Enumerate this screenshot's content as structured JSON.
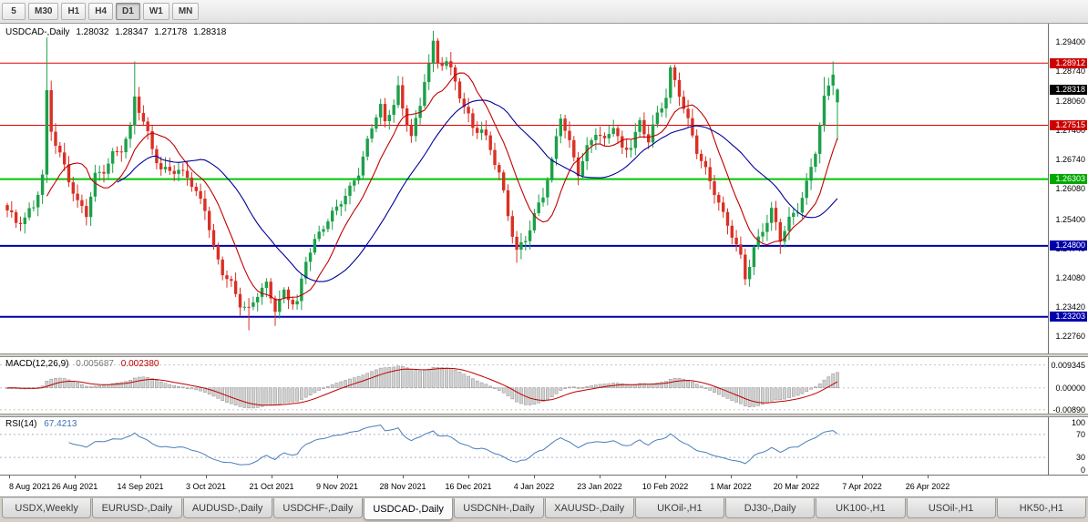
{
  "toolbar": {
    "timeframes": [
      "5",
      "M30",
      "H1",
      "H4",
      "D1",
      "W1",
      "MN"
    ],
    "active": "D1"
  },
  "chart": {
    "title": "USDCAD-,Daily",
    "ohlc": {
      "open": "1.28032",
      "high": "1.28347",
      "low": "1.27178",
      "close": "1.28318"
    }
  },
  "price_axis": {
    "labels": [
      "1.29400",
      "1.28740",
      "1.28060",
      "1.27400",
      "1.26740",
      "1.26080",
      "1.25400",
      "1.24740",
      "1.24080",
      "1.23420",
      "1.22760"
    ],
    "boxes": [
      {
        "value": "1.28912",
        "bg": "#CC0000"
      },
      {
        "value": "1.28318",
        "bg": "#000000"
      },
      {
        "value": "1.27515",
        "bg": "#CC0000"
      },
      {
        "value": "1.26303",
        "bg": "#00A800"
      },
      {
        "value": "1.24800",
        "bg": "#0000AA"
      },
      {
        "value": "1.23203",
        "bg": "#0000AA"
      }
    ]
  },
  "levels": [
    {
      "price": 1.28912,
      "color": "#DD0000",
      "width": 1
    },
    {
      "price": 1.27515,
      "color": "#DD0000",
      "width": 1
    },
    {
      "price": 1.26303,
      "color": "#00C400",
      "width": 2
    },
    {
      "price": 1.248,
      "color": "#0000AA",
      "width": 2
    },
    {
      "price": 1.23203,
      "color": "#0000AA",
      "width": 2
    }
  ],
  "indicators": {
    "ma_fast": {
      "period": 10,
      "color": "#C00000"
    },
    "ma_slow": {
      "period": 26,
      "color": "#00009C"
    },
    "macd": {
      "label": "MACD(12,26,9)",
      "value_main": "0.005687",
      "value_signal": "0.002380",
      "axis_labels": [
        "0.009345",
        "0.00000",
        "-0.00890"
      ],
      "fast": 12,
      "slow": 26,
      "signal": 9
    },
    "rsi": {
      "label": "RSI(14)",
      "value": "67.4213",
      "axis_labels": [
        "100",
        "70",
        "30",
        "0"
      ],
      "levels": [
        70,
        30
      ],
      "period": 14
    }
  },
  "time_axis": {
    "labels": [
      "8 Aug 2021",
      "26 Aug 2021",
      "14 Sep 2021",
      "3 Oct 2021",
      "21 Oct 2021",
      "9 Nov 2021",
      "28 Nov 2021",
      "16 Dec 2021",
      "4 Jan 2022",
      "23 Jan 2022",
      "10 Feb 2022",
      "1 Mar 2022",
      "20 Mar 2022",
      "7 Apr 2022",
      "26 Apr 2022"
    ]
  },
  "tabs": {
    "items": [
      "USDX,Weekly",
      "EURUSD-,Daily",
      "AUDUSD-,Daily",
      "USDCHF-,Daily",
      "USDCAD-,Daily",
      "USDCNH-,Daily",
      "XAUUSD-,Daily",
      "UKOil-,H1",
      "DJ30-,Daily",
      "UK100-,H1",
      "USOil-,H1",
      "HK50-,H1"
    ],
    "active_index": 4
  },
  "chart_data": {
    "type": "candlestick",
    "symbol": "USDCAD",
    "period": "Daily",
    "title": "USDCAD-,Daily 1.28032 1.28347 1.27178 1.28318",
    "candle_count": 190,
    "price_range": [
      1.2238,
      1.298
    ],
    "macd_range": [
      -0.0105,
      0.0125
    ],
    "last_candle": [
      1.28032,
      1.28347,
      1.27178,
      1.28318
    ],
    "anchors": [
      [
        0,
        1.256
      ],
      [
        2,
        1.2528
      ],
      [
        4,
        1.2536
      ],
      [
        6,
        1.2568
      ],
      [
        8,
        1.264
      ],
      [
        9,
        1.2828
      ],
      [
        10,
        1.2748
      ],
      [
        12,
        1.2688
      ],
      [
        14,
        1.2628
      ],
      [
        16,
        1.257
      ],
      [
        18,
        1.2548
      ],
      [
        20,
        1.2636
      ],
      [
        22,
        1.2656
      ],
      [
        24,
        1.269
      ],
      [
        26,
        1.2702
      ],
      [
        28,
        1.2738
      ],
      [
        29,
        1.2812
      ],
      [
        31,
        1.2752
      ],
      [
        33,
        1.27
      ],
      [
        35,
        1.2652
      ],
      [
        37,
        1.266
      ],
      [
        39,
        1.2648
      ],
      [
        41,
        1.2638
      ],
      [
        43,
        1.259
      ],
      [
        45,
        1.2562
      ],
      [
        47,
        1.2472
      ],
      [
        49,
        1.2428
      ],
      [
        51,
        1.2398
      ],
      [
        53,
        1.2352
      ],
      [
        55,
        1.233
      ],
      [
        57,
        1.2368
      ],
      [
        59,
        1.2388
      ],
      [
        61,
        1.2342
      ],
      [
        63,
        1.238
      ],
      [
        65,
        1.236
      ],
      [
        66,
        1.2352
      ],
      [
        68,
        1.2448
      ],
      [
        70,
        1.2482
      ],
      [
        72,
        1.2522
      ],
      [
        74,
        1.2552
      ],
      [
        76,
        1.2588
      ],
      [
        78,
        1.2612
      ],
      [
        80,
        1.2648
      ],
      [
        82,
        1.2708
      ],
      [
        84,
        1.2772
      ],
      [
        85,
        1.2792
      ],
      [
        86,
        1.275
      ],
      [
        88,
        1.2808
      ],
      [
        89,
        1.2842
      ],
      [
        90,
        1.2788
      ],
      [
        92,
        1.2738
      ],
      [
        94,
        1.2788
      ],
      [
        95,
        1.2852
      ],
      [
        97,
        1.2928
      ],
      [
        98,
        1.2882
      ],
      [
        100,
        1.2898
      ],
      [
        102,
        1.2852
      ],
      [
        104,
        1.28
      ],
      [
        106,
        1.2748
      ],
      [
        108,
        1.2738
      ],
      [
        110,
        1.2692
      ],
      [
        112,
        1.2638
      ],
      [
        114,
        1.2552
      ],
      [
        116,
        1.2472
      ],
      [
        118,
        1.2502
      ],
      [
        120,
        1.2548
      ],
      [
        122,
        1.2592
      ],
      [
        124,
        1.2662
      ],
      [
        125,
        1.2718
      ],
      [
        126,
        1.2772
      ],
      [
        128,
        1.2712
      ],
      [
        130,
        1.2652
      ],
      [
        132,
        1.2702
      ],
      [
        134,
        1.2738
      ],
      [
        136,
        1.2708
      ],
      [
        138,
        1.2748
      ],
      [
        140,
        1.2692
      ],
      [
        142,
        1.2712
      ],
      [
        144,
        1.2762
      ],
      [
        146,
        1.2722
      ],
      [
        148,
        1.2772
      ],
      [
        150,
        1.2812
      ],
      [
        151,
        1.2868
      ],
      [
        153,
        1.2822
      ],
      [
        155,
        1.2762
      ],
      [
        157,
        1.2702
      ],
      [
        159,
        1.2652
      ],
      [
        161,
        1.2602
      ],
      [
        163,
        1.2542
      ],
      [
        165,
        1.2502
      ],
      [
        167,
        1.2452
      ],
      [
        168,
        1.2412
      ],
      [
        170,
        1.2478
      ],
      [
        172,
        1.2522
      ],
      [
        174,
        1.2558
      ],
      [
        176,
        1.2492
      ],
      [
        178,
        1.2532
      ],
      [
        180,
        1.2562
      ],
      [
        182,
        1.2622
      ],
      [
        184,
        1.2702
      ],
      [
        186,
        1.2812
      ],
      [
        188,
        1.2872
      ],
      [
        189,
        1.2832
      ]
    ],
    "spike_highs": {
      "9": 1.2949,
      "29": 1.2895,
      "97": 1.2964,
      "151": 1.2878,
      "186": 1.286,
      "188": 1.2895
    },
    "spike_lows": {
      "55": 1.229,
      "61": 1.23,
      "116": 1.2442,
      "168": 1.2403,
      "176": 1.2462
    },
    "colors": {
      "bull": "#1CA049",
      "bear": "#D93025",
      "macd_hist": "#d2d2d2",
      "macd_hist_border": "#909090",
      "macd_signal": "#C00000",
      "rsi_line": "#4a7ebb"
    }
  }
}
